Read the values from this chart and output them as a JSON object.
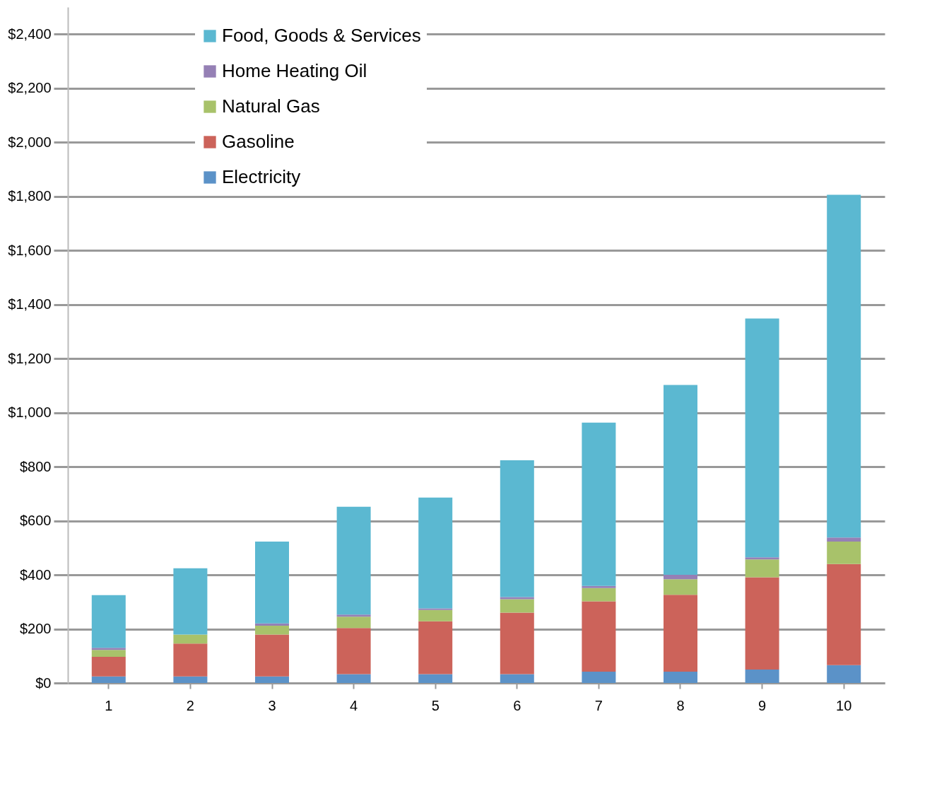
{
  "chart_data": {
    "type": "bar",
    "stacked": true,
    "categories": [
      "1",
      "2",
      "3",
      "4",
      "5",
      "6",
      "7",
      "8",
      "9",
      "10"
    ],
    "series": [
      {
        "name": "Electricity",
        "color": "#5b92c8",
        "values": [
          24,
          24,
          24,
          33,
          33,
          33,
          42,
          42,
          50,
          66
        ]
      },
      {
        "name": "Gasoline",
        "color": "#cc635a",
        "values": [
          73,
          122,
          155,
          170,
          195,
          227,
          260,
          284,
          341,
          374
        ]
      },
      {
        "name": "Natural Gas",
        "color": "#a8c26a",
        "values": [
          25,
          33,
          33,
          42,
          42,
          50,
          49,
          58,
          66,
          83
        ]
      },
      {
        "name": "Home Heating Oil",
        "color": "#9580b5",
        "values": [
          8,
          0,
          8,
          8,
          6,
          8,
          8,
          16,
          8,
          15
        ]
      },
      {
        "name": "Food, Goods & Services",
        "color": "#5bb8d1",
        "values": [
          195,
          245,
          303,
          399,
          410,
          506,
          604,
          702,
          883,
          1268
        ]
      }
    ],
    "ylim": [
      0,
      2500
    ],
    "yticks": [
      {
        "value": 0,
        "label": "$0"
      },
      {
        "value": 200,
        "label": "$200"
      },
      {
        "value": 400,
        "label": "$400"
      },
      {
        "value": 600,
        "label": "$600"
      },
      {
        "value": 800,
        "label": "$800"
      },
      {
        "value": 1000,
        "label": "$1,000"
      },
      {
        "value": 1200,
        "label": "$1,200"
      },
      {
        "value": 1400,
        "label": "$1,400"
      },
      {
        "value": 1600,
        "label": "$1,600"
      },
      {
        "value": 1800,
        "label": "$1,800"
      },
      {
        "value": 2000,
        "label": "$2,000"
      },
      {
        "value": 2200,
        "label": "$2,200"
      },
      {
        "value": 2400,
        "label": "$2,400"
      }
    ],
    "grid": "y",
    "legend": "top left"
  }
}
